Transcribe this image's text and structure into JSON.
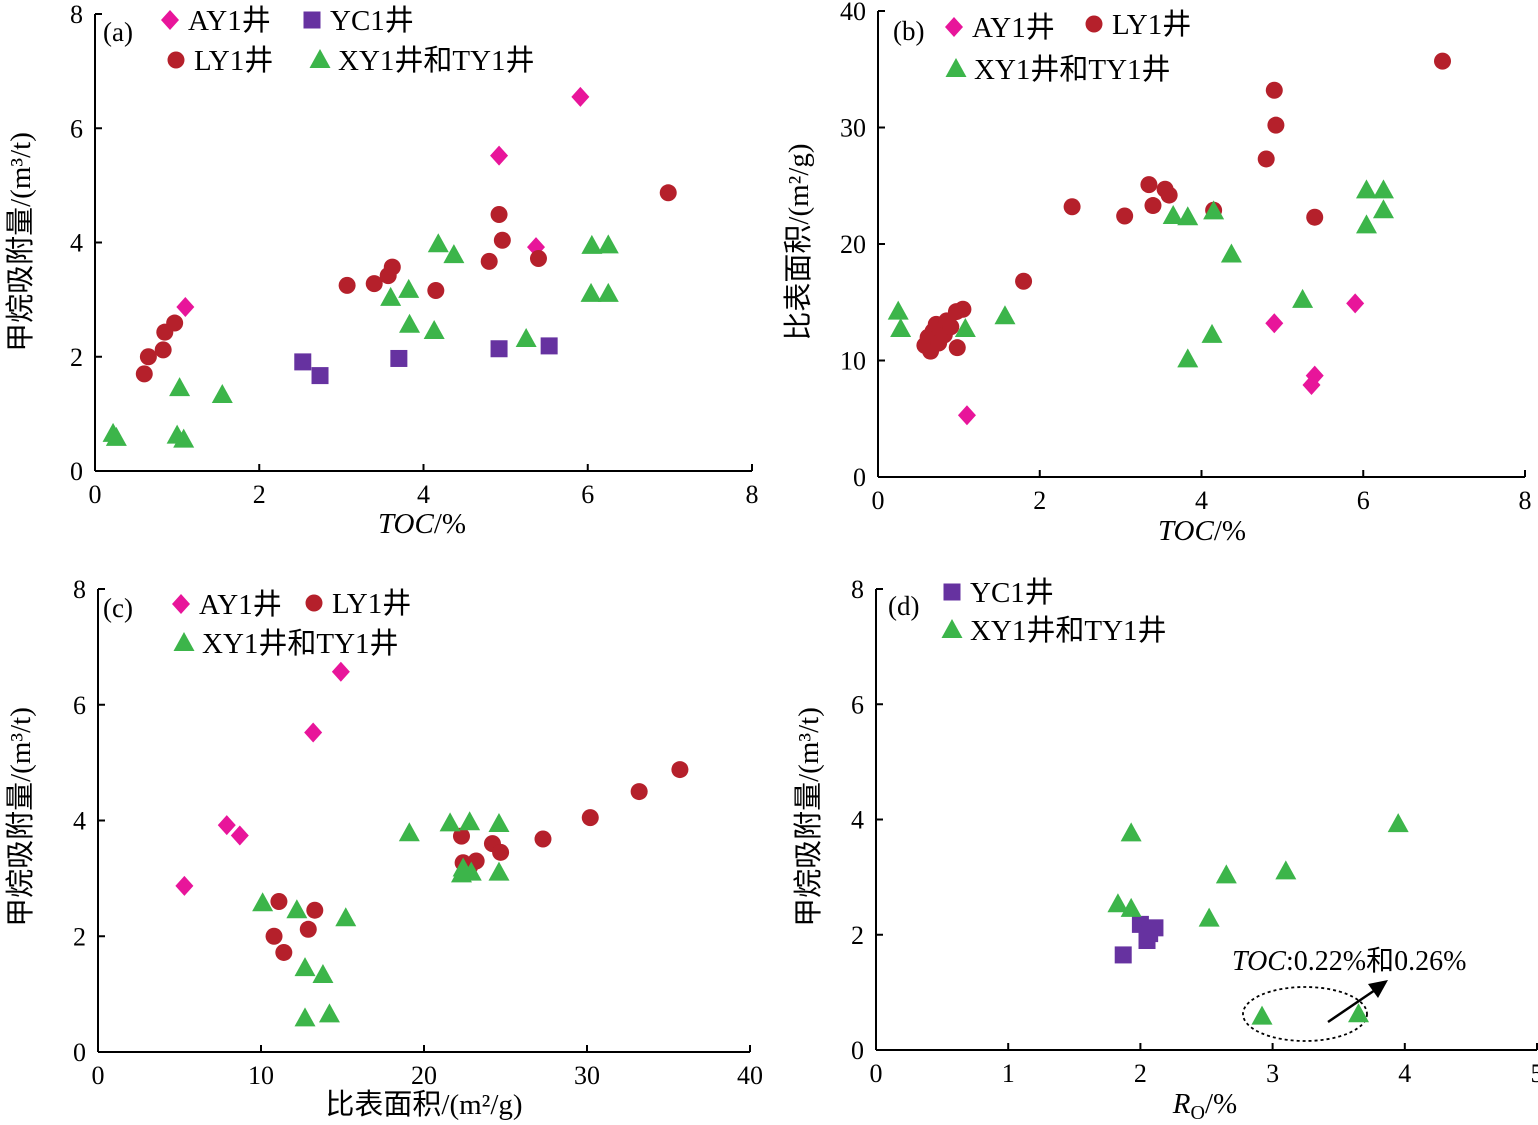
{
  "colors": {
    "AY1": "#e8159a",
    "YC1": "#6632a0",
    "LY1": "#b5202b",
    "XYTY": "#3cb54a"
  },
  "chart_data": [
    {
      "type": "scatter",
      "panel_label": "(a)",
      "xlabel": "TOC/%",
      "ylabel": "甲烷吸附量/(m³/t)",
      "xlim": [
        0,
        8
      ],
      "ylim": [
        0,
        8
      ],
      "xticks": [
        "0",
        "2",
        "4",
        "6",
        "8"
      ],
      "yticks": [
        "0",
        "2",
        "4",
        "6",
        "8"
      ],
      "series": [
        {
          "name": "AY1井",
          "key": "AY1",
          "marker": "diamond",
          "points": [
            [
              1.1,
              2.87
            ],
            [
              4.92,
              5.52
            ],
            [
              5.91,
              6.55
            ],
            [
              5.37,
              3.92
            ]
          ]
        },
        {
          "name": "YC1井",
          "key": "YC1",
          "marker": "square",
          "points": [
            [
              2.53,
              1.91
            ],
            [
              2.74,
              1.67
            ],
            [
              3.7,
              1.97
            ],
            [
              4.92,
              2.14
            ],
            [
              5.53,
              2.19
            ]
          ]
        },
        {
          "name": "LY1井",
          "key": "LY1",
          "marker": "circle",
          "points": [
            [
              0.6,
              1.7
            ],
            [
              0.65,
              2.0
            ],
            [
              0.83,
              2.12
            ],
            [
              0.85,
              2.43
            ],
            [
              0.97,
              2.59
            ],
            [
              3.07,
              3.25
            ],
            [
              3.4,
              3.28
            ],
            [
              3.57,
              3.42
            ],
            [
              3.62,
              3.57
            ],
            [
              4.15,
              3.16
            ],
            [
              4.8,
              3.67
            ],
            [
              4.92,
              4.49
            ],
            [
              4.96,
              4.04
            ],
            [
              5.4,
              3.72
            ],
            [
              6.98,
              4.87
            ]
          ]
        },
        {
          "name": "XY1井和TY1井",
          "key": "XYTY",
          "marker": "triangle",
          "points": [
            [
              0.22,
              0.65
            ],
            [
              0.26,
              0.58
            ],
            [
              1.03,
              1.45
            ],
            [
              1.0,
              0.62
            ],
            [
              1.08,
              0.55
            ],
            [
              1.55,
              1.33
            ],
            [
              3.6,
              3.03
            ],
            [
              3.82,
              3.17
            ],
            [
              3.83,
              2.56
            ],
            [
              4.13,
              2.45
            ],
            [
              4.18,
              3.97
            ],
            [
              4.37,
              3.78
            ],
            [
              5.25,
              2.31
            ],
            [
              6.05,
              3.94
            ],
            [
              6.25,
              3.95
            ],
            [
              6.04,
              3.1
            ],
            [
              6.25,
              3.1
            ]
          ]
        }
      ],
      "legend": [
        {
          "key": "AY1",
          "label": "AY1井"
        },
        {
          "key": "YC1",
          "label": "YC1井"
        },
        {
          "key": "LY1",
          "label": "LY1井"
        },
        {
          "key": "XYTY",
          "label": "XY1井和TY1井"
        }
      ]
    },
    {
      "type": "scatter",
      "panel_label": "(b)",
      "xlabel": "TOC/%",
      "ylabel": "比表面积/(m²/g)",
      "xlim": [
        0,
        8
      ],
      "ylim": [
        0,
        40
      ],
      "xticks": [
        "0",
        "2",
        "4",
        "6",
        "8"
      ],
      "yticks": [
        "0",
        "10",
        "20",
        "30",
        "40"
      ],
      "series": [
        {
          "name": "AY1井",
          "key": "AY1",
          "marker": "diamond",
          "points": [
            [
              1.1,
              5.3
            ],
            [
              4.9,
              13.2
            ],
            [
              5.36,
              7.9
            ],
            [
              5.4,
              8.7
            ],
            [
              5.9,
              14.9
            ]
          ]
        },
        {
          "name": "LY1井",
          "key": "LY1",
          "marker": "circle",
          "points": [
            [
              0.58,
              11.3
            ],
            [
              0.62,
              12.0
            ],
            [
              0.65,
              10.8
            ],
            [
              0.68,
              12.5
            ],
            [
              0.72,
              13.1
            ],
            [
              0.75,
              11.5
            ],
            [
              0.78,
              12.6
            ],
            [
              0.82,
              12.2
            ],
            [
              0.85,
              13.4
            ],
            [
              0.9,
              12.9
            ],
            [
              0.97,
              14.2
            ],
            [
              0.98,
              11.1
            ],
            [
              1.05,
              14.4
            ],
            [
              1.8,
              16.8
            ],
            [
              2.4,
              23.2
            ],
            [
              3.05,
              22.4
            ],
            [
              3.35,
              25.1
            ],
            [
              3.4,
              23.3
            ],
            [
              3.55,
              24.7
            ],
            [
              3.6,
              24.2
            ],
            [
              4.15,
              22.9
            ],
            [
              4.8,
              27.3
            ],
            [
              4.9,
              33.2
            ],
            [
              4.92,
              30.2
            ],
            [
              5.4,
              22.3
            ],
            [
              6.98,
              35.7
            ]
          ]
        },
        {
          "name": "XY1井和TY1井",
          "key": "XYTY",
          "marker": "triangle",
          "points": [
            [
              0.25,
              14.2
            ],
            [
              0.28,
              12.7
            ],
            [
              1.08,
              12.7
            ],
            [
              1.57,
              13.8
            ],
            [
              3.65,
              22.4
            ],
            [
              3.83,
              22.3
            ],
            [
              4.15,
              22.8
            ],
            [
              3.83,
              10.1
            ],
            [
              4.13,
              12.2
            ],
            [
              4.37,
              19.1
            ],
            [
              5.25,
              15.2
            ],
            [
              6.04,
              24.6
            ],
            [
              6.25,
              24.6
            ],
            [
              6.04,
              21.6
            ],
            [
              6.25,
              22.9
            ]
          ]
        }
      ],
      "legend": [
        {
          "key": "AY1",
          "label": "AY1井"
        },
        {
          "key": "LY1",
          "label": "LY1井"
        },
        {
          "key": "XYTY",
          "label": "XY1井和TY1井"
        }
      ]
    },
    {
      "type": "scatter",
      "panel_label": "(c)",
      "xlabel": "比表面积/(m²/g)",
      "ylabel": "甲烷吸附量/(m³/t)",
      "xlim": [
        0,
        40
      ],
      "ylim": [
        0,
        8
      ],
      "xticks": [
        "0",
        "10",
        "20",
        "30",
        "40"
      ],
      "yticks": [
        "0",
        "2",
        "4",
        "6",
        "8"
      ],
      "series": [
        {
          "name": "AY1井",
          "key": "AY1",
          "marker": "diamond",
          "points": [
            [
              5.3,
              2.87
            ],
            [
              7.9,
              3.92
            ],
            [
              8.7,
              3.74
            ],
            [
              13.2,
              5.52
            ],
            [
              14.9,
              6.57
            ]
          ]
        },
        {
          "name": "LY1井",
          "key": "LY1",
          "marker": "circle",
          "points": [
            [
              10.8,
              2.0
            ],
            [
              11.1,
              2.6
            ],
            [
              11.4,
              1.72
            ],
            [
              12.9,
              2.12
            ],
            [
              13.3,
              2.45
            ],
            [
              22.3,
              3.73
            ],
            [
              22.4,
              3.27
            ],
            [
              22.8,
              3.2
            ],
            [
              23.2,
              3.3
            ],
            [
              24.2,
              3.6
            ],
            [
              24.7,
              3.45
            ],
            [
              27.3,
              3.68
            ],
            [
              30.2,
              4.05
            ],
            [
              33.2,
              4.5
            ],
            [
              35.7,
              4.88
            ]
          ]
        },
        {
          "name": "XY1井和TY1井",
          "key": "XYTY",
          "marker": "triangle",
          "points": [
            [
              10.1,
              2.57
            ],
            [
              12.2,
              2.45
            ],
            [
              12.7,
              1.45
            ],
            [
              12.7,
              0.58
            ],
            [
              14.2,
              0.65
            ],
            [
              13.8,
              1.33
            ],
            [
              15.2,
              2.31
            ],
            [
              19.1,
              3.78
            ],
            [
              21.6,
              3.95
            ],
            [
              22.3,
              3.07
            ],
            [
              22.4,
              3.17
            ],
            [
              22.8,
              3.97
            ],
            [
              22.9,
              3.1
            ],
            [
              24.6,
              3.94
            ],
            [
              24.6,
              3.1
            ]
          ]
        }
      ],
      "legend": [
        {
          "key": "AY1",
          "label": "AY1井"
        },
        {
          "key": "LY1",
          "label": "LY1井"
        },
        {
          "key": "XYTY",
          "label": "XY1井和TY1井"
        }
      ]
    },
    {
      "type": "scatter",
      "panel_label": "(d)",
      "xlabel": "Ro/%",
      "ylabel": "甲烷吸附量/(m³/t)",
      "xlim": [
        0,
        5
      ],
      "ylim": [
        0,
        8
      ],
      "xticks": [
        "0",
        "1",
        "2",
        "3",
        "4",
        "5"
      ],
      "yticks": [
        "0",
        "2",
        "4",
        "6",
        "8"
      ],
      "series": [
        {
          "name": "YC1井",
          "key": "YC1",
          "marker": "square",
          "points": [
            [
              1.87,
              1.65
            ],
            [
              2.0,
              2.18
            ],
            [
              2.05,
              1.9
            ],
            [
              2.07,
              2.02
            ],
            [
              2.11,
              2.12
            ]
          ]
        },
        {
          "name": "XY1井和TY1井",
          "key": "XYTY",
          "marker": "triangle",
          "points": [
            [
              1.83,
              2.53
            ],
            [
              1.93,
              2.45
            ],
            [
              1.93,
              3.76
            ],
            [
              2.52,
              2.28
            ],
            [
              2.65,
              3.03
            ],
            [
              2.92,
              0.58
            ],
            [
              3.1,
              3.1
            ],
            [
              3.65,
              0.62
            ],
            [
              3.95,
              3.92
            ]
          ]
        }
      ],
      "legend": [
        {
          "key": "YC1",
          "label": "YC1井"
        },
        {
          "key": "XYTY",
          "label": "XY1井和TY1井"
        }
      ],
      "annotation": {
        "label": "TOC",
        "value": ":0.22%和0.26%"
      }
    }
  ]
}
